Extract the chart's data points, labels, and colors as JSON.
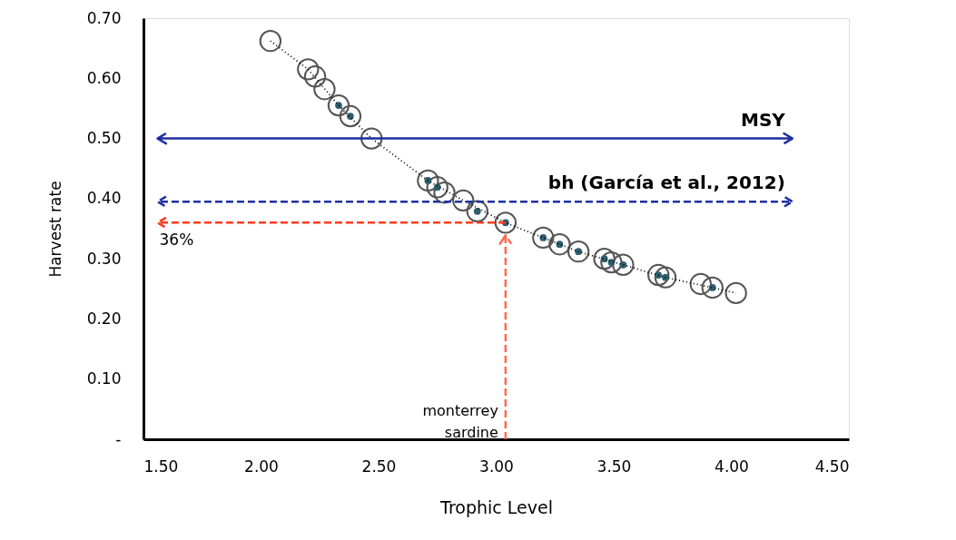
{
  "chart_data": {
    "type": "scatter",
    "xlabel": "Trophic Level",
    "ylabel": "Harvest rate",
    "xlim": [
      1.5,
      4.5
    ],
    "ylim": [
      0,
      0.7
    ],
    "xticks": [
      {
        "value": 1.5,
        "label": "1.50"
      },
      {
        "value": 2,
        "label": "2.00"
      },
      {
        "value": 2.5,
        "label": "2.50"
      },
      {
        "value": 3,
        "label": "3.00"
      },
      {
        "value": 3.5,
        "label": "3.50"
      },
      {
        "value": 4,
        "label": "4.00"
      },
      {
        "value": 4.5,
        "label": "4.50"
      }
    ],
    "yticks": [
      {
        "value": 0,
        "label": "-"
      },
      {
        "value": 0.1,
        "label": "0.10"
      },
      {
        "value": 0.2,
        "label": "0.20"
      },
      {
        "value": 0.3,
        "label": "0.30"
      },
      {
        "value": 0.4,
        "label": "0.40"
      },
      {
        "value": 0.5,
        "label": "0.50"
      },
      {
        "value": 0.6,
        "label": "0.60"
      },
      {
        "value": 0.7,
        "label": "0.70"
      }
    ],
    "grid": false,
    "marker": "circle",
    "series": [
      {
        "color": "#555555",
        "x": [
          2.04,
          2.2,
          2.23,
          2.27,
          2.33,
          2.38,
          2.47,
          2.71,
          2.75,
          2.78,
          2.86,
          2.92,
          3.04,
          3.2,
          3.27,
          3.35,
          3.46,
          3.49,
          3.54,
          3.69,
          3.72,
          3.87,
          3.92,
          4.02
        ],
        "values": [
          0.662,
          0.615,
          0.603,
          0.582,
          0.555,
          0.537,
          0.5,
          0.43,
          0.419,
          0.41,
          0.397,
          0.379,
          0.36,
          0.335,
          0.324,
          0.312,
          0.3,
          0.294,
          0.29,
          0.273,
          0.269,
          0.258,
          0.252,
          0.243
        ]
      },
      {
        "color": "#2e5f6e",
        "marker": "dot",
        "x": [
          2.33,
          2.38,
          2.71,
          2.75,
          2.92,
          3.04,
          3.2,
          3.27,
          3.35,
          3.46,
          3.49,
          3.54,
          3.69,
          3.72,
          3.92
        ],
        "values": [
          0.555,
          0.537,
          0.43,
          0.419,
          0.379,
          0.36,
          0.335,
          0.324,
          0.312,
          0.3,
          0.294,
          0.29,
          0.273,
          0.269,
          0.252
        ]
      },
      {
        "type": "line",
        "color": "#000000",
        "line_style": "dotted",
        "marker": "none",
        "x": [
          2.04,
          2.2,
          2.33,
          2.47,
          2.71,
          2.86,
          3.04,
          3.2,
          3.35,
          3.54,
          3.72,
          3.92,
          4.02
        ],
        "values": [
          0.662,
          0.615,
          0.555,
          0.5,
          0.43,
          0.397,
          0.36,
          0.335,
          0.312,
          0.29,
          0.269,
          0.252,
          0.243
        ]
      }
    ],
    "ref_lines": [
      {
        "axis": "y",
        "value": 0.5,
        "label": "MSY",
        "color": "#1f2fa0",
        "line_style": "solid"
      },
      {
        "axis": "y",
        "value": 0.395,
        "label": "bh (García et al., 2012)",
        "color": "#1f2fa0",
        "line_style": "dashed"
      },
      {
        "axis": "y",
        "value": 0.36,
        "label": "36%",
        "color": "#ff3b1f",
        "line_style": "dashed"
      },
      {
        "axis": "x",
        "value": 3.04,
        "label": "monterrey sardine",
        "color": "#ff6a4d",
        "line_style": "dashed"
      }
    ]
  }
}
